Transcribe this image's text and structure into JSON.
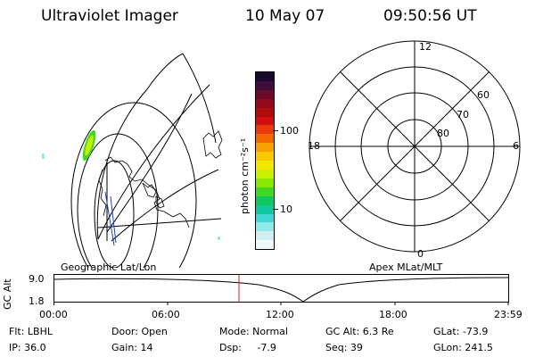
{
  "header": {
    "instrument": "Ultraviolet Imager",
    "date": "10 May 07",
    "time": "09:50:56 UT"
  },
  "colorbar": {
    "unit_label": "photon cm⁻²s⁻¹",
    "tick_labels": [
      "100",
      "10"
    ],
    "colors_top_to_bottom": [
      "#1a0a2e",
      "#3d0d3d",
      "#6b0a2a",
      "#8f0a1a",
      "#b00a0a",
      "#d01010",
      "#e83a0a",
      "#f06a00",
      "#f8a000",
      "#f8c800",
      "#f0e800",
      "#c8f000",
      "#88e800",
      "#40d820",
      "#10c860",
      "#10c8a0",
      "#40d8d0",
      "#90e8e8",
      "#d0f0f0",
      "#eef8f8"
    ]
  },
  "left_map": {
    "label": "Geographic Lat/Lon"
  },
  "right_map": {
    "label": "Apex MLat/MLT",
    "mlt_labels": {
      "top": "12",
      "bottom": "0",
      "left": "18",
      "right": "6"
    },
    "lat_labels": [
      "60",
      "70",
      "80"
    ]
  },
  "altitude_plot": {
    "ylabel": "GC Alt",
    "y_ticks": [
      "9.0",
      "1.8"
    ],
    "x_ticks": [
      "00:00",
      "06:00",
      "12:00",
      "18:00",
      "23:59"
    ]
  },
  "info": {
    "row1": {
      "filter": "Flt: LBHL",
      "door": "Door: Open",
      "mode": "Mode: Normal",
      "alt": "GC Alt: 6.3 Re",
      "glat": "GLat: -73.9"
    },
    "row2": {
      "ip": "IP: 36.0",
      "gain": "Gain: 14",
      "dsp": "Dsp:     -7.9",
      "seq": "Seq: 39",
      "glon": "GLon: 241.5"
    }
  }
}
